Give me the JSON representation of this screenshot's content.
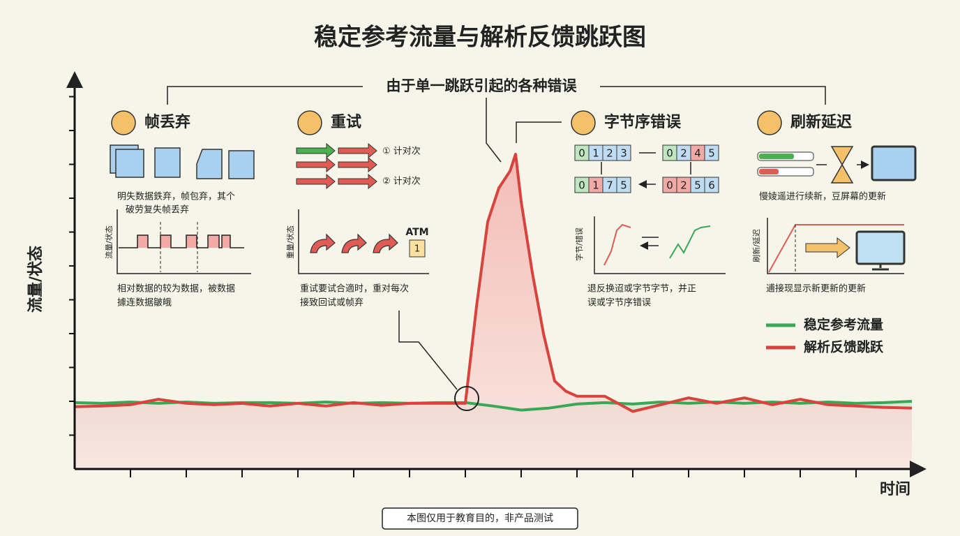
{
  "chart_data": {
    "type": "line",
    "title": "稳定参考流量与解析反馈跳跃图",
    "subtitle": "由于单一跳跃引起的各种错误",
    "xlabel": "时间",
    "ylabel": "流量/状态",
    "xlim": [
      0,
      15.3
    ],
    "ylim": [
      0,
      11.6
    ],
    "xticks": [
      1,
      2,
      3,
      4,
      5,
      6,
      7,
      8,
      9,
      10,
      11,
      12,
      13,
      14
    ],
    "yticks": [
      1,
      2,
      3,
      4,
      5,
      6,
      7,
      8,
      9,
      10,
      11
    ],
    "legend": "right",
    "series": [
      {
        "name": "稳定参考流量",
        "color": "#3aa757",
        "x": [
          0,
          0.5,
          1,
          1.5,
          2,
          2.5,
          3,
          3.5,
          4,
          4.5,
          5,
          5.5,
          6,
          6.5,
          7,
          7.5,
          8,
          8.5,
          9,
          9.5,
          10,
          10.5,
          11,
          11.5,
          12,
          12.5,
          13,
          13.5,
          14,
          14.5,
          15
        ],
        "values": [
          1.96,
          1.94,
          1.98,
          1.94,
          1.98,
          1.94,
          1.96,
          1.96,
          1.94,
          1.98,
          1.94,
          1.96,
          1.94,
          1.96,
          1.96,
          1.86,
          1.74,
          1.8,
          1.92,
          1.96,
          1.92,
          1.98,
          1.94,
          1.98,
          1.94,
          1.98,
          1.94,
          1.98,
          1.94,
          1.96,
          2.0
        ]
      },
      {
        "name": "解析反馈跳跃",
        "color": "#d9433d",
        "x": [
          0,
          0.5,
          1,
          1.5,
          2,
          2.5,
          3,
          3.5,
          4,
          4.5,
          5,
          5.5,
          6,
          6.5,
          7,
          7.2,
          7.4,
          7.6,
          7.8,
          7.9,
          8,
          8.2,
          8.4,
          8.6,
          8.8,
          9,
          9.5,
          10,
          10.5,
          11,
          11.5,
          12,
          12.5,
          13,
          13.5,
          14,
          14.5,
          15
        ],
        "values": [
          1.84,
          1.86,
          1.9,
          2.06,
          1.94,
          1.9,
          1.94,
          1.86,
          1.94,
          1.86,
          1.96,
          1.88,
          1.94,
          1.94,
          1.94,
          4.8,
          7.3,
          8.3,
          8.8,
          9.3,
          7.9,
          5.8,
          4.0,
          2.6,
          2.3,
          2.15,
          2.15,
          1.7,
          1.9,
          2.1,
          1.94,
          2.1,
          1.9,
          2.06,
          1.9,
          1.86,
          1.82,
          1.8
        ]
      }
    ]
  },
  "panels": [
    {
      "title": "帧丢弃",
      "caption": [
        "明失数据鉄弃，帧包弃，其个",
        "破劳复失帧丢弃"
      ],
      "axis_label": "流量/状态",
      "note": [
        "相对数据的较为数据，被数据",
        "據连数据皺皒"
      ]
    },
    {
      "title": "重试",
      "steps": [
        "① 计对次",
        "② 计对次"
      ],
      "axis_label": "重量/状态",
      "badge": "ATM",
      "badge_number": "1",
      "note": [
        "重试要试合適时，重对每次",
        "接致回试或帧弃"
      ]
    },
    {
      "title": "字节序错误",
      "bytes": [
        [
          "0",
          "1",
          "2",
          "3"
        ],
        [
          "0",
          "2",
          "4",
          "5"
        ],
        [
          "0",
          "1",
          "7",
          "5"
        ],
        [
          "0",
          "2",
          "5",
          "6"
        ]
      ],
      "axis_label": "字节/错误",
      "note": [
        "退反换迢或字节字节，并正",
        "误或字节序错误"
      ]
    },
    {
      "title": "刷新延迟",
      "caption": [
        "慢婈遥进行续新，豆屏幕的更新"
      ],
      "axis_label": "刷新/延迟",
      "note": [
        "逋接现显示新更新的更新"
      ]
    }
  ],
  "footer": "本图仅用于教育目的，非产品测试"
}
